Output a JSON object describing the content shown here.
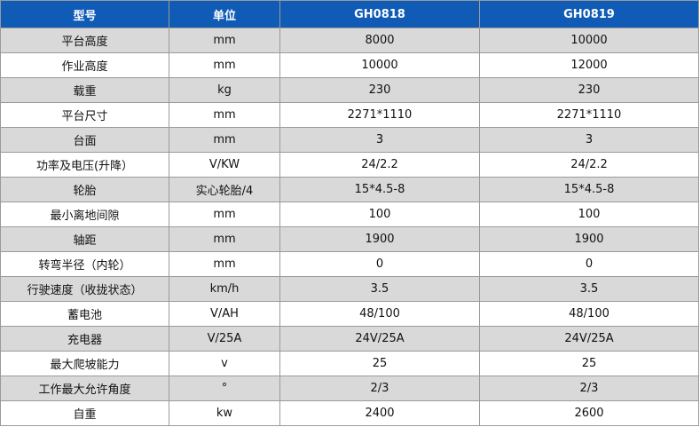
{
  "table": {
    "header": [
      "型号",
      "单位",
      "GH0818",
      "GH0819"
    ],
    "rows": [
      [
        "平台高度",
        "mm",
        "8000",
        "10000"
      ],
      [
        "作业高度",
        "mm",
        "10000",
        "12000"
      ],
      [
        "载重",
        "kg",
        "230",
        "230"
      ],
      [
        "平台尺寸",
        "mm",
        "2271*1110",
        "2271*1110"
      ],
      [
        "台面",
        "mm",
        "3",
        "3"
      ],
      [
        "功率及电压(升降）",
        "V/KW",
        "24/2.2",
        "24/2.2"
      ],
      [
        "轮胎",
        "实心轮胎/4",
        "15*4.5-8",
        "15*4.5-8"
      ],
      [
        "最小离地间隙",
        "mm",
        "100",
        "100"
      ],
      [
        "轴距",
        "mm",
        "1900",
        "1900"
      ],
      [
        "转弯半径（内轮）",
        "mm",
        "0",
        "0"
      ],
      [
        "行驶速度（收拢状态）",
        "km/h",
        "3.5",
        "3.5"
      ],
      [
        "蓄电池",
        "V/AH",
        "48/100",
        "48/100"
      ],
      [
        "充电器",
        "V/25A",
        "24V/25A",
        "24V/25A"
      ],
      [
        "最大爬坡能力",
        "v",
        "25",
        "25"
      ],
      [
        "工作最大允许角度",
        "°",
        "2/3",
        "2/3"
      ],
      [
        "自重",
        "kw",
        "2400",
        "2600"
      ]
    ]
  }
}
